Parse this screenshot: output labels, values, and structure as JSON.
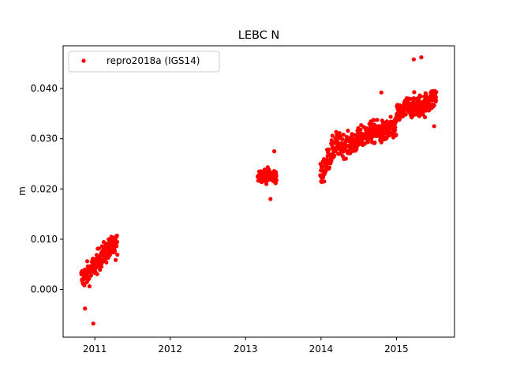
{
  "chart_data": {
    "type": "scatter",
    "title": "LEBC N",
    "xlabel": "",
    "ylabel": "m",
    "xlim": [
      2010.58,
      2015.77
    ],
    "ylim": [
      -0.0095,
      0.0485
    ],
    "x_ticks": [
      2011,
      2012,
      2013,
      2014,
      2015
    ],
    "x_tick_labels": [
      "2011",
      "2012",
      "2013",
      "2014",
      "2015"
    ],
    "y_ticks": [
      0.0,
      0.01,
      0.02,
      0.03,
      0.04
    ],
    "y_tick_labels": [
      "0.000",
      "0.010",
      "0.020",
      "0.030",
      "0.040"
    ],
    "grid": false,
    "legend_position": "top-left",
    "series": [
      {
        "name": "repro2018a (IGS14)",
        "color": "#ff0000",
        "marker": "circle",
        "segments": [
          {
            "start": 2010.82,
            "end": 2011.3,
            "a": 0.0025,
            "b": 0.009,
            "noise": 0.002
          },
          {
            "start": 2013.16,
            "end": 2013.41,
            "a": 0.0225,
            "b": 0.023,
            "noise": 0.0012
          },
          {
            "start": 2013.99,
            "end": 2014.22,
            "a": 0.0225,
            "b": 0.029,
            "noise": 0.0022
          },
          {
            "start": 2014.22,
            "end": 2015.0,
            "a": 0.0285,
            "b": 0.0325,
            "noise": 0.002
          },
          {
            "start": 2015.0,
            "end": 2015.53,
            "a": 0.0345,
            "b": 0.0385,
            "noise": 0.002
          }
        ],
        "extreme_points": [
          [
            2010.87,
            -0.0038
          ],
          [
            2010.98,
            -0.0068
          ],
          [
            2011.24,
            0.01
          ],
          [
            2013.38,
            0.0275
          ],
          [
            2013.33,
            0.018
          ],
          [
            2015.23,
            0.0458
          ],
          [
            2015.33,
            0.0462
          ],
          [
            2015.5,
            0.0325
          ],
          [
            2014.8,
            0.0392
          ]
        ]
      }
    ]
  }
}
